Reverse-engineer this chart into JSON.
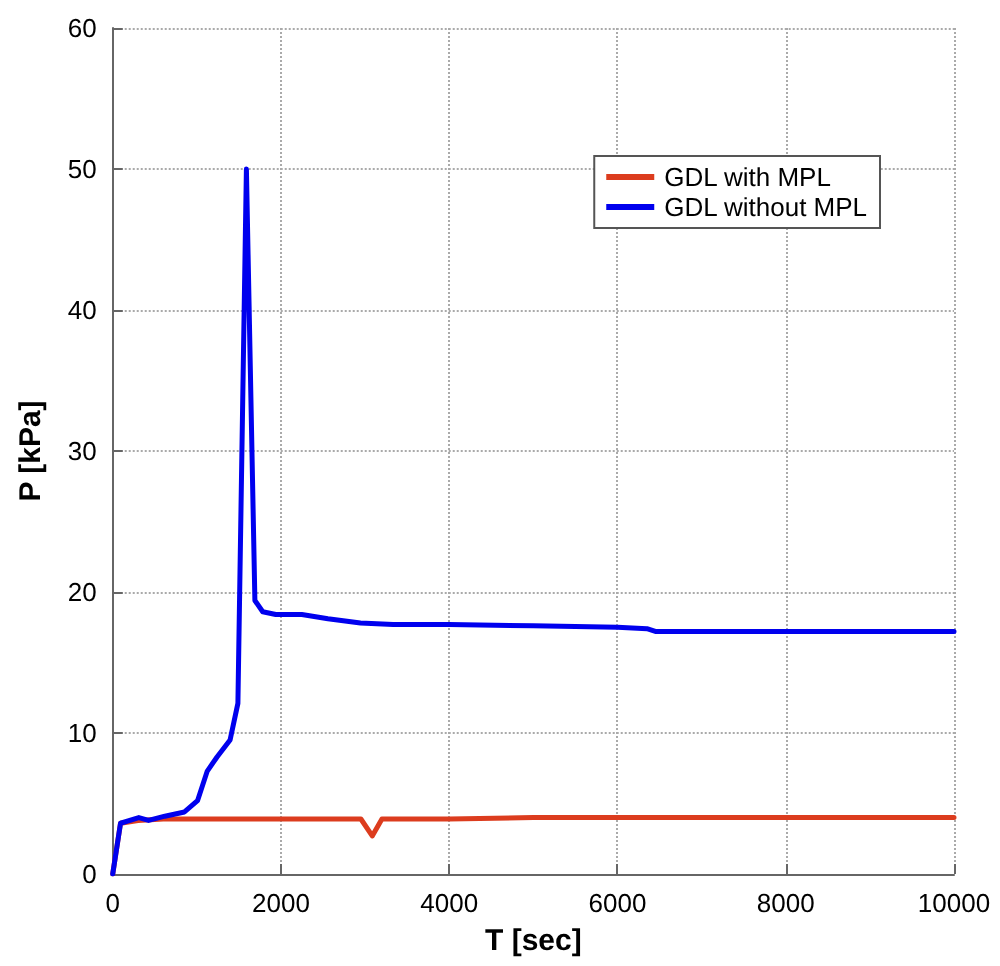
{
  "chart_data": {
    "type": "line",
    "xlabel": "T [sec]",
    "ylabel": "P [kPa]",
    "xlim": [
      0,
      10000
    ],
    "ylim": [
      0,
      60
    ],
    "xticks": [
      0,
      2000,
      4000,
      6000,
      8000,
      10000
    ],
    "yticks": [
      0,
      10,
      20,
      30,
      40,
      50,
      60
    ],
    "grid": true,
    "legend": "top right",
    "line_style": "solid",
    "marker": "none",
    "series": [
      {
        "name": "GDL with MPL",
        "color": "#dc3c1e",
        "x": [
          0,
          93,
          300,
          600,
          1000,
          1500,
          2000,
          2500,
          2950,
          3085,
          3200,
          3500,
          4000,
          5000,
          6000,
          7000,
          8000,
          9000,
          10000
        ],
        "values": [
          0,
          3.6,
          3.8,
          3.9,
          3.9,
          3.9,
          3.9,
          3.9,
          3.9,
          2.7,
          3.9,
          3.9,
          3.9,
          4.0,
          4.0,
          4.0,
          4.0,
          4.0,
          4.0
        ]
      },
      {
        "name": "GDL without MPL",
        "color": "#0000ee",
        "x": [
          0,
          93,
          310,
          426,
          620,
          853,
          1008,
          1124,
          1240,
          1395,
          1488,
          1589,
          1690,
          1783,
          1938,
          2248,
          2558,
          2945,
          3333,
          4000,
          5000,
          6000,
          6350,
          6450,
          8000,
          10000
        ],
        "values": [
          0,
          3.6,
          4.0,
          3.8,
          4.1,
          4.4,
          5.2,
          7.3,
          8.3,
          9.5,
          12.1,
          50,
          19.4,
          18.6,
          18.4,
          18.4,
          18.1,
          17.8,
          17.7,
          17.7,
          17.6,
          17.5,
          17.4,
          17.2,
          17.2,
          17.2
        ]
      }
    ]
  }
}
